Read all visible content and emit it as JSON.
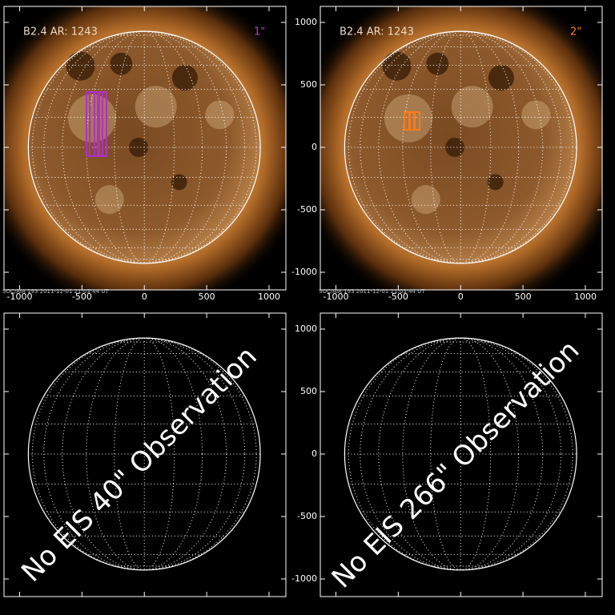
{
  "panels": [
    {
      "label": "B2.4 AR: 1243",
      "resolution": "1\"",
      "footer": "SOC/AIA 193   2011-12-01 21:03:44 UT"
    },
    {
      "label": "B2.4 AR: 1243",
      "resolution": "2\"",
      "footer": "SOC/AIA 193   2011-12-01 21:03:44 UT"
    },
    {
      "message": "No EIS 40\" Observation"
    },
    {
      "message": "No EIS 266\" Observation"
    }
  ],
  "axes": {
    "xlim": [
      -1125,
      1135
    ],
    "ylim": [
      -1141,
      1128
    ],
    "xticks": [
      -1000,
      -500,
      0,
      500,
      1000
    ],
    "yticks": [
      -1000,
      -500,
      0,
      500,
      1000
    ]
  }
}
